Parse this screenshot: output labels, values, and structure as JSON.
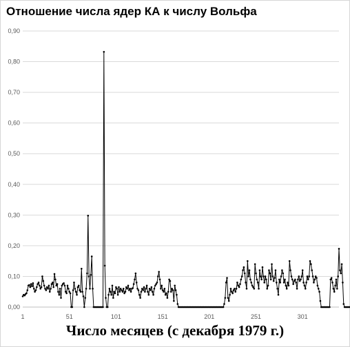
{
  "chart_data": {
    "type": "line",
    "title": "Отношение числа ядер КА к числу Вольфа",
    "xlabel": "Число месяцев (с декабря 1979 г.)",
    "ylabel": "",
    "xlim": [
      1,
      340
    ],
    "ylim": [
      0,
      0.9
    ],
    "grid": true,
    "y_ticks": [
      {
        "value": 0.0,
        "label": "0,00"
      },
      {
        "value": 0.1,
        "label": "0,10"
      },
      {
        "value": 0.2,
        "label": "0,20"
      },
      {
        "value": 0.3,
        "label": "0,30"
      },
      {
        "value": 0.4,
        "label": "0,40"
      },
      {
        "value": 0.5,
        "label": "0,50"
      },
      {
        "value": 0.6,
        "label": "0,60"
      },
      {
        "value": 0.7,
        "label": "0,70"
      },
      {
        "value": 0.8,
        "label": "0,80"
      },
      {
        "value": 0.9,
        "label": "0,90"
      }
    ],
    "x_ticks": [
      {
        "value": 1,
        "label": "1"
      },
      {
        "value": 51,
        "label": "51"
      },
      {
        "value": 101,
        "label": "101"
      },
      {
        "value": 151,
        "label": "151"
      },
      {
        "value": 201,
        "label": "201"
      },
      {
        "value": 251,
        "label": "251"
      },
      {
        "value": 301,
        "label": "301"
      }
    ],
    "series": [
      {
        "color": "#000000",
        "x_start": 1,
        "values": [
          0.035,
          0.04,
          0.038,
          0.042,
          0.045,
          0.055,
          0.07,
          0.072,
          0.065,
          0.075,
          0.068,
          0.078,
          0.06,
          0.05,
          0.055,
          0.065,
          0.075,
          0.08,
          0.07,
          0.06,
          0.065,
          0.1,
          0.085,
          0.07,
          0.06,
          0.055,
          0.065,
          0.06,
          0.07,
          0.05,
          0.06,
          0.075,
          0.08,
          0.065,
          0.108,
          0.09,
          0.07,
          0.075,
          0.05,
          0.04,
          0.06,
          0.03,
          0.07,
          0.075,
          0.078,
          0.07,
          0.05,
          0.045,
          0.07,
          0.06,
          0.05,
          0.045,
          0.0,
          0.0,
          0.055,
          0.08,
          0.06,
          0.05,
          0.04,
          0.065,
          0.07,
          0.055,
          0.05,
          0.125,
          0.05,
          0.035,
          0.0,
          0.03,
          0.06,
          0.11,
          0.298,
          0.1,
          0.06,
          0.105,
          0.165,
          0.06,
          0.0,
          0.0,
          0.0,
          0.0,
          0.0,
          0.0,
          0.0,
          0.0,
          0.0,
          0.0,
          0.0,
          0.832,
          0.135,
          0.03,
          0.0,
          0.0,
          0.04,
          0.06,
          0.05,
          0.04,
          0.07,
          0.03,
          0.05,
          0.045,
          0.065,
          0.06,
          0.04,
          0.065,
          0.05,
          0.06,
          0.055,
          0.05,
          0.06,
          0.045,
          0.05,
          0.065,
          0.06,
          0.07,
          0.055,
          0.06,
          0.05,
          0.06,
          0.062,
          0.075,
          0.09,
          0.11,
          0.08,
          0.06,
          0.055,
          0.04,
          0.03,
          0.05,
          0.06,
          0.055,
          0.065,
          0.05,
          0.06,
          0.07,
          0.05,
          0.04,
          0.06,
          0.055,
          0.065,
          0.05,
          0.04,
          0.06,
          0.07,
          0.075,
          0.08,
          0.1,
          0.115,
          0.09,
          0.06,
          0.07,
          0.055,
          0.05,
          0.06,
          0.04,
          0.045,
          0.03,
          0.05,
          0.09,
          0.085,
          0.05,
          0.06,
          0.055,
          0.02,
          0.07,
          0.055,
          0.04,
          0.01,
          0.0,
          0.0,
          0.0,
          0.0,
          0.0,
          0.0,
          0.0,
          0.0,
          0.0,
          0.0,
          0.0,
          0.0,
          0.0,
          0.0,
          0.0,
          0.0,
          0.0,
          0.0,
          0.0,
          0.0,
          0.0,
          0.0,
          0.0,
          0.0,
          0.0,
          0.0,
          0.0,
          0.0,
          0.0,
          0.0,
          0.0,
          0.0,
          0.0,
          0.0,
          0.0,
          0.0,
          0.0,
          0.0,
          0.0,
          0.0,
          0.0,
          0.0,
          0.0,
          0.0,
          0.0,
          0.0,
          0.0,
          0.0,
          0.0,
          0.01,
          0.03,
          0.08,
          0.095,
          0.03,
          0.02,
          0.04,
          0.06,
          0.05,
          0.045,
          0.055,
          0.06,
          0.05,
          0.06,
          0.08,
          0.07,
          0.065,
          0.075,
          0.09,
          0.1,
          0.12,
          0.13,
          0.11,
          0.08,
          0.06,
          0.15,
          0.1,
          0.12,
          0.09,
          0.08,
          0.07,
          0.065,
          0.06,
          0.14,
          0.11,
          0.09,
          0.08,
          0.06,
          0.12,
          0.1,
          0.09,
          0.13,
          0.1,
          0.08,
          0.1,
          0.09,
          0.06,
          0.07,
          0.12,
          0.11,
          0.09,
          0.14,
          0.1,
          0.085,
          0.095,
          0.12,
          0.08,
          0.06,
          0.04,
          0.09,
          0.08,
          0.1,
          0.12,
          0.11,
          0.08,
          0.09,
          0.07,
          0.06,
          0.08,
          0.07,
          0.15,
          0.12,
          0.1,
          0.09,
          0.075,
          0.085,
          0.09,
          0.08,
          0.06,
          0.09,
          0.1,
          0.085,
          0.09,
          0.1,
          0.12,
          0.08,
          0.07,
          0.06,
          0.08,
          0.1,
          0.09,
          0.1,
          0.15,
          0.14,
          0.12,
          0.1,
          0.08,
          0.09,
          0.1,
          0.095,
          0.07,
          0.06,
          0.05,
          0.02,
          0.0,
          0.0,
          0.0,
          0.0,
          0.0,
          0.0,
          0.0,
          0.0,
          0.0,
          0.0,
          0.09,
          0.095,
          0.08,
          0.06,
          0.05,
          0.07,
          0.09,
          0.06,
          0.1,
          0.19,
          0.12,
          0.11,
          0.14,
          0.08,
          0.01,
          0.0,
          0.0,
          0.0,
          0.0,
          0.0,
          0.0,
          0.0
        ]
      }
    ]
  }
}
